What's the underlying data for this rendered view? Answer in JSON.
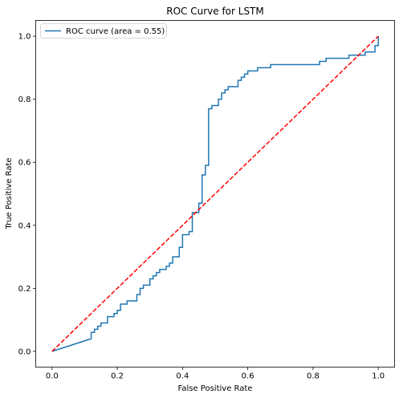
{
  "chart_data": {
    "type": "line",
    "title": "ROC Curve for LSTM",
    "xlabel": "False Positive Rate",
    "ylabel": "True Positive Rate",
    "xlim": [
      -0.05,
      1.05
    ],
    "ylim": [
      -0.05,
      1.05
    ],
    "xticks": [
      0.0,
      0.2,
      0.4,
      0.6,
      0.8,
      1.0
    ],
    "yticks": [
      0.0,
      0.2,
      0.4,
      0.6,
      0.8,
      1.0
    ],
    "xtick_labels": [
      "0.0",
      "0.2",
      "0.4",
      "0.6",
      "0.8",
      "1.0"
    ],
    "ytick_labels": [
      "0.0",
      "0.2",
      "0.4",
      "0.6",
      "0.8",
      "1.0"
    ],
    "grid": false,
    "legend_position": "top-left",
    "series": [
      {
        "name": "ROC curve (area = 0.55)",
        "color": "#1f77b4",
        "style": "solid",
        "x": [
          0.0,
          0.12,
          0.12,
          0.13,
          0.13,
          0.14,
          0.14,
          0.15,
          0.15,
          0.17,
          0.17,
          0.19,
          0.19,
          0.2,
          0.2,
          0.21,
          0.21,
          0.23,
          0.23,
          0.26,
          0.26,
          0.27,
          0.27,
          0.28,
          0.28,
          0.3,
          0.3,
          0.31,
          0.31,
          0.32,
          0.32,
          0.33,
          0.33,
          0.35,
          0.35,
          0.36,
          0.36,
          0.37,
          0.37,
          0.39,
          0.39,
          0.4,
          0.4,
          0.42,
          0.42,
          0.43,
          0.43,
          0.45,
          0.45,
          0.46,
          0.46,
          0.47,
          0.47,
          0.48,
          0.48,
          0.49,
          0.49,
          0.51,
          0.51,
          0.52,
          0.52,
          0.53,
          0.53,
          0.54,
          0.54,
          0.57,
          0.57,
          0.58,
          0.58,
          0.59,
          0.59,
          0.6,
          0.6,
          0.63,
          0.63,
          0.67,
          0.67,
          0.7,
          0.7,
          0.82,
          0.82,
          0.84,
          0.84,
          0.86,
          0.86,
          0.91,
          0.91,
          0.93,
          0.93,
          0.96,
          0.96,
          0.99,
          0.99,
          1.0,
          1.0
        ],
        "y": [
          0.0,
          0.04,
          0.06,
          0.06,
          0.07,
          0.07,
          0.08,
          0.08,
          0.09,
          0.09,
          0.11,
          0.11,
          0.12,
          0.12,
          0.13,
          0.13,
          0.15,
          0.15,
          0.16,
          0.16,
          0.18,
          0.18,
          0.2,
          0.2,
          0.21,
          0.21,
          0.23,
          0.23,
          0.24,
          0.24,
          0.25,
          0.25,
          0.26,
          0.26,
          0.27,
          0.27,
          0.28,
          0.28,
          0.3,
          0.3,
          0.33,
          0.33,
          0.37,
          0.37,
          0.38,
          0.38,
          0.44,
          0.44,
          0.47,
          0.47,
          0.56,
          0.56,
          0.59,
          0.59,
          0.77,
          0.77,
          0.78,
          0.78,
          0.8,
          0.8,
          0.82,
          0.82,
          0.83,
          0.83,
          0.84,
          0.84,
          0.86,
          0.86,
          0.87,
          0.87,
          0.88,
          0.88,
          0.89,
          0.89,
          0.9,
          0.9,
          0.91,
          0.91,
          0.91,
          0.91,
          0.92,
          0.92,
          0.93,
          0.93,
          0.93,
          0.93,
          0.94,
          0.94,
          0.94,
          0.94,
          0.95,
          0.95,
          0.97,
          0.97,
          1.0
        ]
      },
      {
        "name": "",
        "color": "#ff0000",
        "style": "dashed",
        "x": [
          0.0,
          1.0
        ],
        "y": [
          0.0,
          1.0
        ]
      }
    ]
  }
}
